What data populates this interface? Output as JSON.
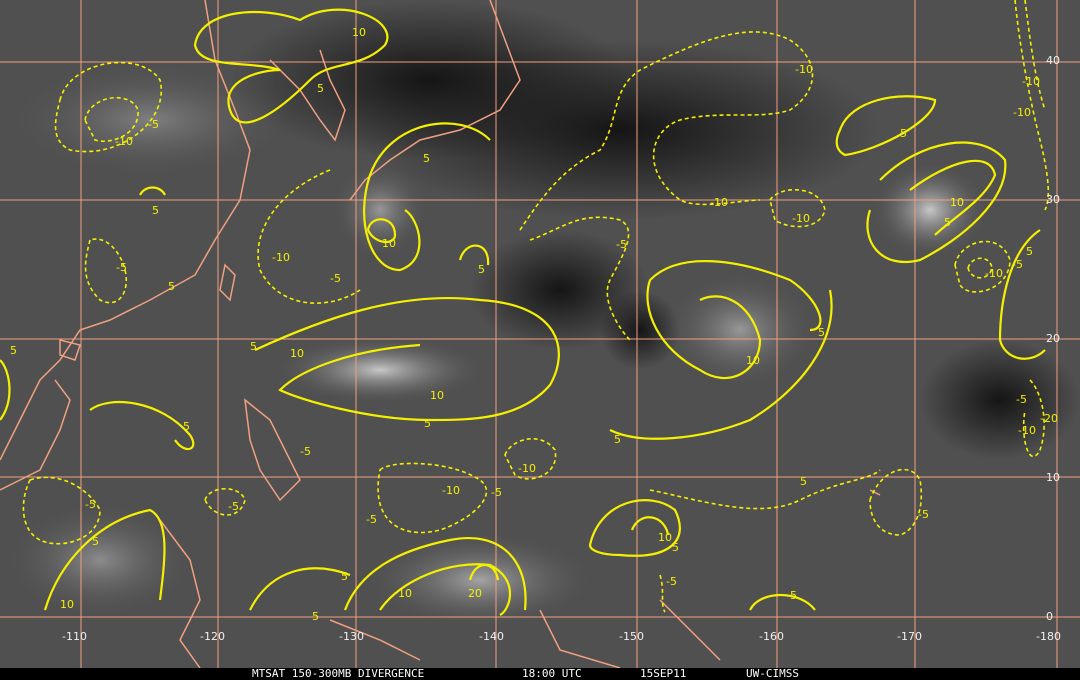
{
  "caption": {
    "product": "MTSAT 150-300MB DIVERGENCE",
    "time": "18:00 UTC",
    "date": "15SEP11",
    "source": "UW-CIMSS"
  },
  "longitude_labels": [
    "-110",
    "-120",
    "-130",
    "-140",
    "-150",
    "-160",
    "-170",
    "-180"
  ],
  "latitude_labels": [
    "40",
    "30",
    "20",
    "10",
    "0"
  ],
  "colors": {
    "contour": "#f5f000",
    "grid_coast": "#f0a080",
    "background": "#4a4a4a"
  },
  "contour_labels": [
    "10",
    "5",
    "-10",
    "-5",
    "5",
    "-10",
    "10",
    "5",
    "-5",
    "-10",
    "5",
    "5",
    "-10",
    "-5",
    "-10",
    "5",
    "10",
    "5",
    "-5",
    "5",
    "10",
    "10",
    "5",
    "5",
    "-5",
    "5",
    "-5",
    "-10",
    "-5",
    "-10",
    "-5",
    "-5",
    "5",
    "10",
    "5",
    "-5",
    "5",
    "5",
    "20",
    "10",
    "5",
    "10",
    "5",
    "-5",
    "-20",
    "-10",
    "5",
    "-10",
    "-5",
    "-10",
    "10",
    "5",
    "-5",
    "-10",
    "5"
  ]
}
